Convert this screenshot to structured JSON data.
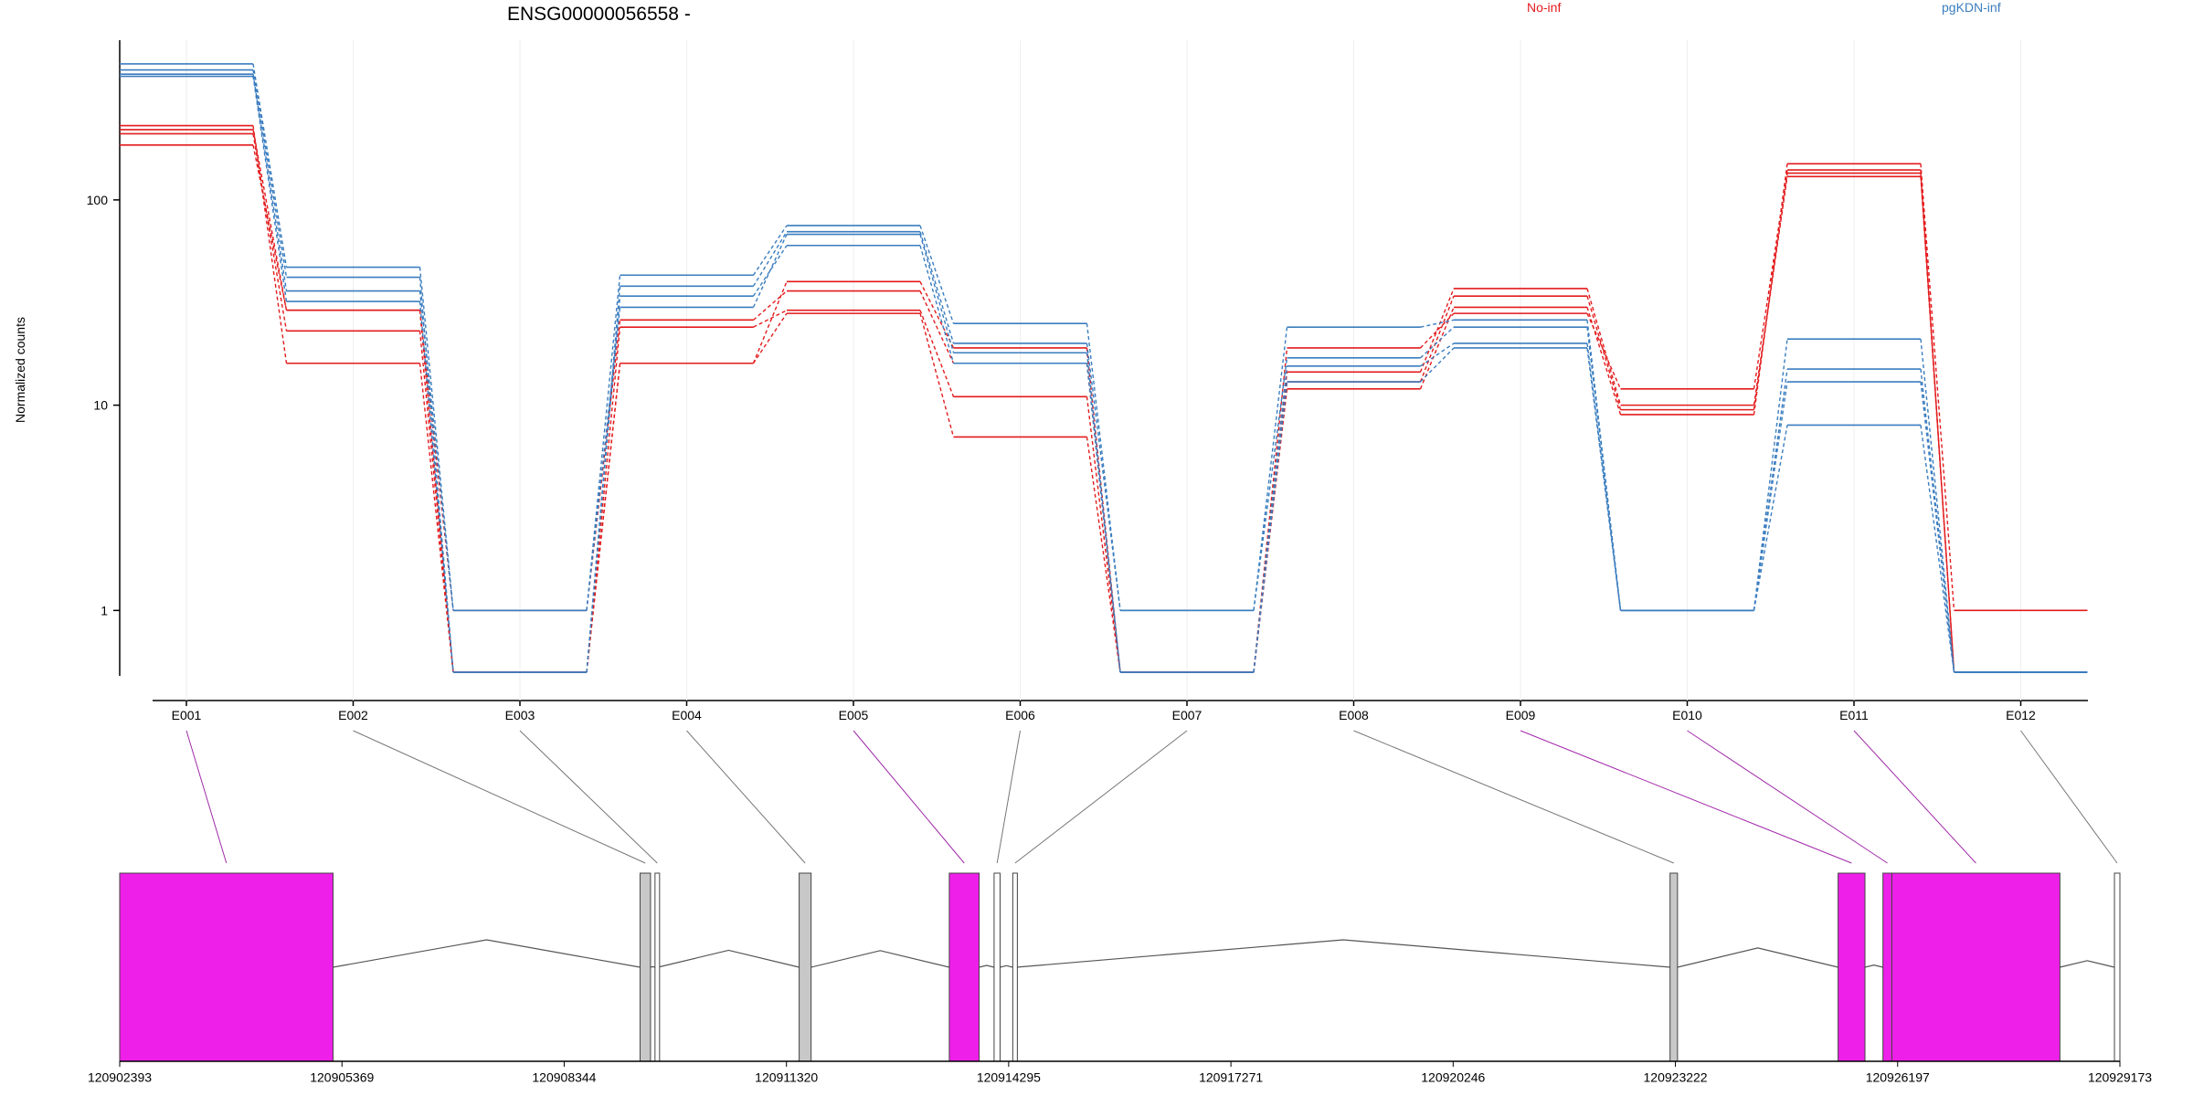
{
  "chart_data": {
    "type": "line",
    "title": "ENSG00000056558 -",
    "ylabel": "Normalized counts",
    "yscale": "log",
    "ylim": [
      0.48,
      600
    ],
    "yticks": [
      "1",
      "10",
      "100"
    ],
    "categories": [
      "E001",
      "E002",
      "E003",
      "E004",
      "E005",
      "E006",
      "E007",
      "E008",
      "E009",
      "E010",
      "E011",
      "E012"
    ],
    "legend": [
      {
        "name": "No-inf",
        "color": "#e31a1c"
      },
      {
        "name": "pgKDN-inf",
        "color": "#3a7dbf"
      }
    ],
    "groups": [
      {
        "name": "No-inf",
        "color": "#e31a1c",
        "lines": [
          [
            230,
            16,
            0.5,
            16,
            28,
            7,
            0.5,
            12,
            30,
            9,
            150,
            1
          ],
          [
            210,
            23,
            0.5,
            24,
            29,
            11,
            0.5,
            13,
            34,
            9.5,
            135,
            0.5
          ],
          [
            185,
            29,
            1,
            26,
            36,
            16,
            0.5,
            14.5,
            37,
            10,
            130,
            0.5
          ],
          [
            220,
            29,
            0.5,
            16,
            40,
            19,
            0.5,
            19,
            28,
            12,
            140,
            0.5
          ]
        ]
      },
      {
        "name": "pgKDN-inf",
        "color": "#3a7dbf",
        "lines": [
          [
            460,
            47,
            1,
            43,
            75,
            25,
            1,
            24,
            26,
            1,
            21,
            0.5
          ],
          [
            430,
            42,
            0.5,
            38,
            70,
            20,
            1,
            17,
            24,
            1,
            15,
            0.5
          ],
          [
            410,
            36,
            1,
            30,
            68,
            18,
            0.5,
            15.5,
            20,
            1,
            13,
            0.5
          ],
          [
            400,
            32,
            0.5,
            34,
            60,
            16,
            0.5,
            13,
            19,
            1,
            8,
            0.5
          ]
        ]
      }
    ],
    "gene_model": {
      "coordinate_ticks": [
        "120902393",
        "120905369",
        "120908344",
        "120911320",
        "120914295",
        "120917271",
        "120920246",
        "120923222",
        "120926197",
        "120929173"
      ],
      "exons": [
        {
          "id": "E001",
          "start": 120902393,
          "end": 120905250,
          "highlight": true
        },
        {
          "id": "E002",
          "start": 120909360,
          "end": 120909500,
          "highlight": false
        },
        {
          "id": "E003",
          "start": 120909560,
          "end": 120909600,
          "highlight": false
        },
        {
          "id": "E004",
          "start": 120911490,
          "end": 120911650,
          "highlight": false
        },
        {
          "id": "E005",
          "start": 120913500,
          "end": 120913900,
          "highlight": true
        },
        {
          "id": "E006",
          "start": 120914100,
          "end": 120914180,
          "highlight": false
        },
        {
          "id": "E007",
          "start": 120914350,
          "end": 120914400,
          "highlight": false
        },
        {
          "id": "E008",
          "start": 120923150,
          "end": 120923250,
          "highlight": false
        },
        {
          "id": "E009",
          "start": 120925400,
          "end": 120925760,
          "highlight": true
        },
        {
          "id": "E010",
          "start": 120926000,
          "end": 120926120,
          "highlight": true
        },
        {
          "id": "E011",
          "start": 120926120,
          "end": 120928370,
          "highlight": true
        },
        {
          "id": "E012",
          "start": 120929100,
          "end": 120929173,
          "highlight": false
        }
      ]
    }
  }
}
